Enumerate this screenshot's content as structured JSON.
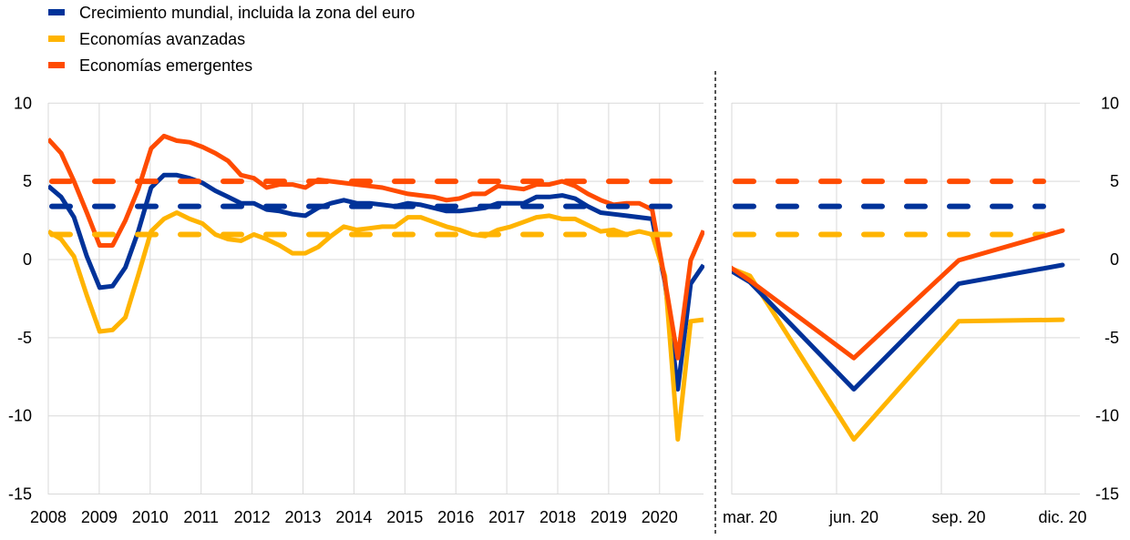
{
  "colors": {
    "world": "#003299",
    "advanced": "#FFB400",
    "emerging": "#FF4B00",
    "grid": "#d9d9d9",
    "separator": "#555555"
  },
  "legend": [
    {
      "key": "world",
      "label": "Crecimiento mundial, incluida la zona del euro"
    },
    {
      "key": "advanced",
      "label": "Economías avanzadas"
    },
    {
      "key": "emerging",
      "label": "Economías emergentes"
    }
  ],
  "chart_data": [
    {
      "type": "line",
      "panel": "left",
      "x_tick_labels": [
        "2008",
        "2009",
        "2010",
        "2011",
        "2012",
        "2013",
        "2014",
        "2015",
        "2016",
        "2017",
        "2018",
        "2019",
        "2020"
      ],
      "x_frequency": "quarterly, 2008 Q1 – 2020 Q4",
      "y_tick_labels": [
        "10",
        "5",
        "0",
        "-5",
        "-10",
        "-15"
      ],
      "ylim": [
        -15,
        10
      ],
      "grid": true,
      "legend_position": "top-left",
      "series": [
        {
          "name": "Crecimiento mundial, incluida la zona del euro",
          "key": "world",
          "style": "solid",
          "values": [
            4.7,
            4.0,
            2.7,
            0.2,
            -1.8,
            -1.7,
            -0.5,
            1.8,
            4.6,
            5.4,
            5.4,
            5.2,
            4.9,
            4.4,
            4.0,
            3.6,
            3.6,
            3.2,
            3.1,
            2.9,
            2.8,
            3.3,
            3.6,
            3.8,
            3.6,
            3.6,
            3.5,
            3.4,
            3.6,
            3.5,
            3.3,
            3.1,
            3.1,
            3.2,
            3.3,
            3.6,
            3.6,
            3.6,
            4.0,
            4.0,
            4.1,
            3.9,
            3.4,
            3.0,
            2.9,
            2.8,
            2.7,
            2.6,
            -1.45,
            -8.3,
            -1.55,
            -0.35
          ]
        },
        {
          "name": "Economías avanzadas",
          "key": "advanced",
          "style": "solid",
          "values": [
            1.8,
            1.3,
            0.2,
            -2.3,
            -4.6,
            -4.5,
            -3.7,
            -1.0,
            1.8,
            2.6,
            3.0,
            2.6,
            2.3,
            1.6,
            1.3,
            1.2,
            1.6,
            1.3,
            0.9,
            0.4,
            0.4,
            0.8,
            1.5,
            2.1,
            1.9,
            2.0,
            2.1,
            2.1,
            2.7,
            2.7,
            2.4,
            2.1,
            1.9,
            1.6,
            1.5,
            1.9,
            2.1,
            2.4,
            2.7,
            2.8,
            2.6,
            2.6,
            2.2,
            1.8,
            1.9,
            1.6,
            1.8,
            1.6,
            -1.05,
            -11.5,
            -3.95,
            -3.85
          ]
        },
        {
          "name": "Economías emergentes",
          "key": "emerging",
          "style": "solid",
          "values": [
            7.7,
            6.8,
            5.0,
            3.0,
            0.9,
            0.9,
            2.5,
            4.5,
            7.1,
            7.9,
            7.6,
            7.5,
            7.2,
            6.8,
            6.3,
            5.4,
            5.2,
            4.6,
            4.8,
            4.8,
            4.6,
            5.1,
            5.0,
            4.9,
            4.8,
            4.7,
            4.6,
            4.4,
            4.2,
            4.1,
            4.0,
            3.8,
            3.9,
            4.2,
            4.2,
            4.7,
            4.6,
            4.5,
            4.8,
            4.8,
            5.0,
            4.7,
            4.2,
            3.8,
            3.5,
            3.6,
            3.6,
            3.2,
            -1.35,
            -6.3,
            -0.05,
            1.85
          ]
        },
        {
          "key": "world",
          "style": "dashed",
          "value": 3.4
        },
        {
          "key": "advanced",
          "style": "dashed",
          "value": 1.6
        },
        {
          "key": "emerging",
          "style": "dashed",
          "value": 5.0
        }
      ]
    },
    {
      "type": "line",
      "panel": "right",
      "categories": [
        "mar. 20",
        "jun. 20",
        "sep. 20",
        "dic. 20"
      ],
      "y_tick_labels": [
        "10",
        "5",
        "0",
        "-5",
        "-10",
        "-15"
      ],
      "ylim": [
        -15,
        10
      ],
      "grid": true,
      "series": [
        {
          "key": "world",
          "style": "solid",
          "previous": 2.6,
          "values": [
            -1.45,
            -8.3,
            -1.55,
            -0.35
          ]
        },
        {
          "key": "advanced",
          "style": "solid",
          "previous": 1.6,
          "values": [
            -1.05,
            -11.5,
            -3.95,
            -3.85
          ]
        },
        {
          "key": "emerging",
          "style": "solid",
          "previous": 3.2,
          "values": [
            -1.35,
            -6.3,
            -0.05,
            1.85
          ]
        },
        {
          "key": "world",
          "style": "dashed",
          "value": 3.4
        },
        {
          "key": "advanced",
          "style": "dashed",
          "value": 1.6
        },
        {
          "key": "emerging",
          "style": "dashed",
          "value": 5.0
        }
      ]
    }
  ]
}
